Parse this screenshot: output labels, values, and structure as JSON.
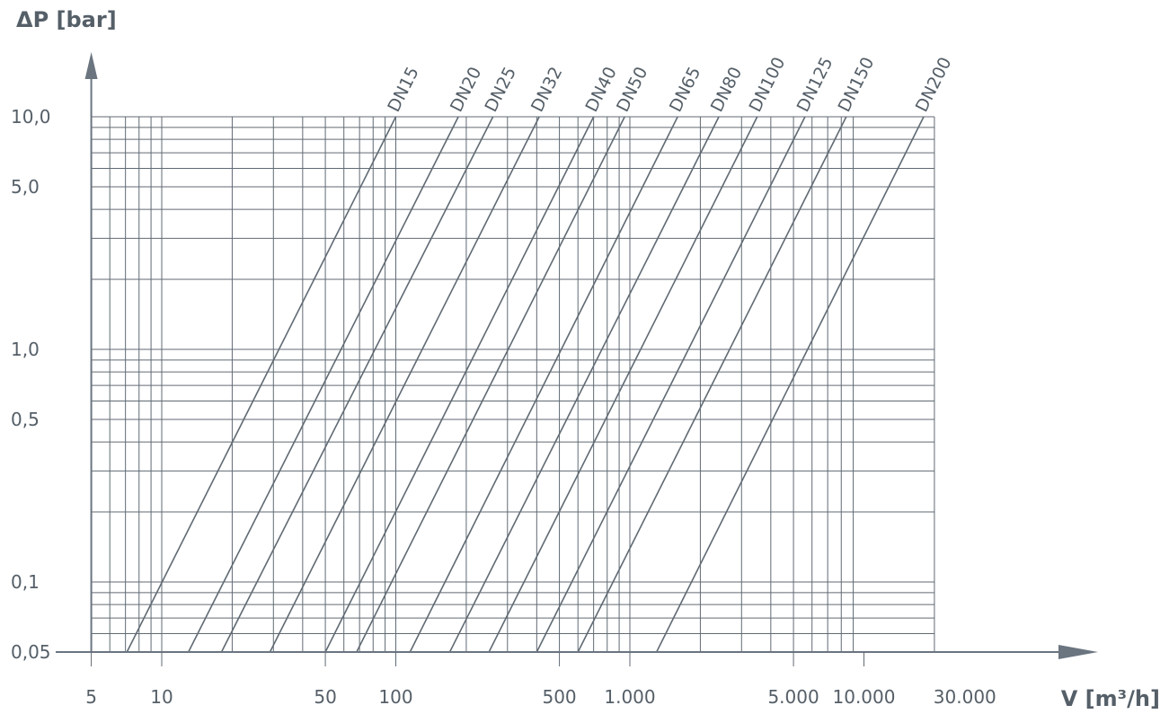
{
  "chart_data": {
    "type": "line",
    "x_scale": "log",
    "y_scale": "log",
    "xlim": [
      5,
      30000
    ],
    "ylim": [
      0.05,
      10
    ],
    "x_grid_max": 20000,
    "grid": true,
    "xlabel": "V [m³/h]",
    "ylabel": "ΔP [bar]",
    "x_ticks": [
      {
        "value": 5,
        "label": "5"
      },
      {
        "value": 10,
        "label": "10"
      },
      {
        "value": 50,
        "label": "50"
      },
      {
        "value": 100,
        "label": "100"
      },
      {
        "value": 500,
        "label": "500"
      },
      {
        "value": 1000,
        "label": "1.000"
      },
      {
        "value": 5000,
        "label": "5.000"
      },
      {
        "value": 10000,
        "label": "10.000"
      },
      {
        "value": 30000,
        "label": "30.000"
      }
    ],
    "y_ticks": [
      {
        "value": 10,
        "label": "10,0"
      },
      {
        "value": 5,
        "label": "5,0"
      },
      {
        "value": 1,
        "label": "1,0"
      },
      {
        "value": 0.5,
        "label": "0,5"
      },
      {
        "value": 0.1,
        "label": "0,1"
      },
      {
        "value": 0.05,
        "label": "0,05"
      }
    ],
    "series": [
      {
        "name": "DN15",
        "points": [
          [
            7.1,
            0.05
          ],
          [
            100,
            10
          ]
        ]
      },
      {
        "name": "DN20",
        "points": [
          [
            13,
            0.05
          ],
          [
            185,
            10
          ]
        ]
      },
      {
        "name": "DN25",
        "points": [
          [
            18,
            0.05
          ],
          [
            260,
            10
          ]
        ]
      },
      {
        "name": "DN32",
        "points": [
          [
            29,
            0.05
          ],
          [
            410,
            10
          ]
        ]
      },
      {
        "name": "DN40",
        "points": [
          [
            50,
            0.05
          ],
          [
            700,
            10
          ]
        ]
      },
      {
        "name": "DN50",
        "points": [
          [
            68,
            0.05
          ],
          [
            950,
            10
          ]
        ]
      },
      {
        "name": "DN65",
        "points": [
          [
            115,
            0.05
          ],
          [
            1600,
            10
          ]
        ]
      },
      {
        "name": "DN80",
        "points": [
          [
            170,
            0.05
          ],
          [
            2400,
            10
          ]
        ]
      },
      {
        "name": "DN100",
        "points": [
          [
            250,
            0.05
          ],
          [
            3500,
            10
          ]
        ]
      },
      {
        "name": "DN125",
        "points": [
          [
            400,
            0.05
          ],
          [
            5600,
            10
          ]
        ]
      },
      {
        "name": "DN150",
        "points": [
          [
            600,
            0.05
          ],
          [
            8400,
            10
          ]
        ]
      },
      {
        "name": "DN200",
        "points": [
          [
            1300,
            0.05
          ],
          [
            18000,
            10
          ]
        ]
      }
    ]
  }
}
